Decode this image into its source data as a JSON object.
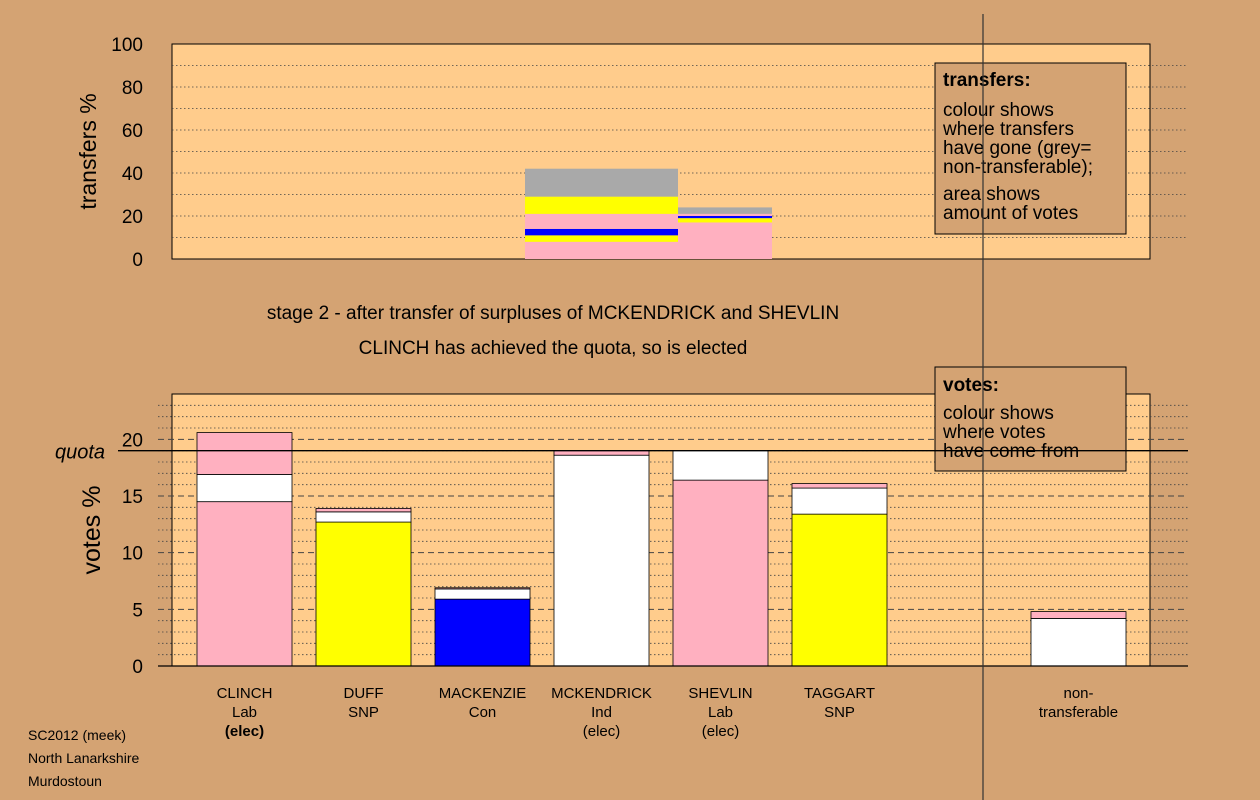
{
  "colors": {
    "background": "#d4a373",
    "plot_area": "#ffcc8c",
    "Lab": "#ffb0c0",
    "SNP": "#ffff00",
    "Con": "#0000ff",
    "Ind": "#ffffff",
    "non_transferable": "#a9a9a9"
  },
  "header": {
    "stage_text": "stage 2 - after transfer of surpluses of MCKENDRICK and SHEVLIN",
    "status_text": "CLINCH has achieved the quota, so is elected"
  },
  "footer": {
    "line1": "SC2012 (meek)",
    "line2": "North Lanarkshire",
    "line3": "Murdostoun"
  },
  "chart_data": [
    {
      "type": "bar",
      "ylabel": "transfers %",
      "ylim": [
        0,
        100
      ],
      "yticks": [
        "0",
        "20",
        "40",
        "60",
        "80",
        "100"
      ],
      "grid": true,
      "legend": {
        "title": "transfers:",
        "lines": [
          "colour shows",
          "where transfers",
          "have gone (grey=",
          "non-transferable);"
        ],
        "lines2": [
          "area shows",
          "amount of votes"
        ],
        "placement": "top-right"
      },
      "series": [
        {
          "source": "MCKENDRICK",
          "segments": [
            {
              "to": "Lab",
              "from": 0,
              "to_value": 8
            },
            {
              "to": "SNP",
              "from": 8,
              "to_value": 11
            },
            {
              "to": "Con",
              "from": 11,
              "to_value": 14
            },
            {
              "to": "Lab",
              "from": 14,
              "to_value": 21
            },
            {
              "to": "SNP",
              "from": 21,
              "to_value": 29
            },
            {
              "to": "non_transferable",
              "from": 29,
              "to_value": 42
            }
          ]
        },
        {
          "source": "SHEVLIN",
          "segments": [
            {
              "to": "Lab",
              "from": 0,
              "to_value": 17
            },
            {
              "to": "SNP",
              "from": 17,
              "to_value": 19
            },
            {
              "to": "Con",
              "from": 19,
              "to_value": 20
            },
            {
              "to": "Lab",
              "from": 20,
              "to_value": 21
            },
            {
              "to": "non_transferable",
              "from": 21,
              "to_value": 24
            }
          ]
        }
      ]
    },
    {
      "type": "bar",
      "ylabel": "votes %",
      "ylim": [
        0,
        24
      ],
      "yticks": [
        "0",
        "5",
        "10",
        "15",
        "20"
      ],
      "quota": 19,
      "quota_label": "quota",
      "grid": true,
      "legend": {
        "title": "votes:",
        "lines": [
          "colour shows",
          "where votes",
          "have come from"
        ],
        "placement": "top-right"
      },
      "categories": [
        {
          "name": "CLINCH",
          "party": "Lab",
          "status": "(elec)",
          "bold_status": true,
          "segments": [
            {
              "c": "Lab",
              "v": 14.5
            },
            {
              "c": "Ind",
              "v": 2.4
            },
            {
              "c": "Lab",
              "v": 3.7
            }
          ]
        },
        {
          "name": "DUFF",
          "party": "SNP",
          "status": "",
          "bold_status": false,
          "segments": [
            {
              "c": "SNP",
              "v": 12.7
            },
            {
              "c": "Ind",
              "v": 0.9
            },
            {
              "c": "Lab",
              "v": 0.3
            }
          ]
        },
        {
          "name": "MACKENZIE",
          "party": "Con",
          "status": "",
          "bold_status": false,
          "segments": [
            {
              "c": "Con",
              "v": 5.9
            },
            {
              "c": "Ind",
              "v": 0.9
            },
            {
              "c": "Lab",
              "v": 0.1
            }
          ]
        },
        {
          "name": "MCKENDRICK",
          "party": "Ind",
          "status": "(elec)",
          "bold_status": false,
          "segments": [
            {
              "c": "Ind",
              "v": 18.6
            },
            {
              "c": "Lab",
              "v": 0.4
            }
          ]
        },
        {
          "name": "SHEVLIN",
          "party": "Lab",
          "status": "(elec)",
          "bold_status": false,
          "segments": [
            {
              "c": "Lab",
              "v": 16.4
            },
            {
              "c": "Ind",
              "v": 2.6
            }
          ]
        },
        {
          "name": "TAGGART",
          "party": "SNP",
          "status": "",
          "bold_status": false,
          "segments": [
            {
              "c": "SNP",
              "v": 13.4
            },
            {
              "c": "Ind",
              "v": 2.3
            },
            {
              "c": "Lab",
              "v": 0.4
            }
          ]
        }
      ],
      "non_transferable": {
        "label_line1": "non-",
        "label_line2": "transferable",
        "segments": [
          {
            "c": "Ind",
            "v": 4.2
          },
          {
            "c": "Lab",
            "v": 0.6
          }
        ]
      }
    }
  ]
}
